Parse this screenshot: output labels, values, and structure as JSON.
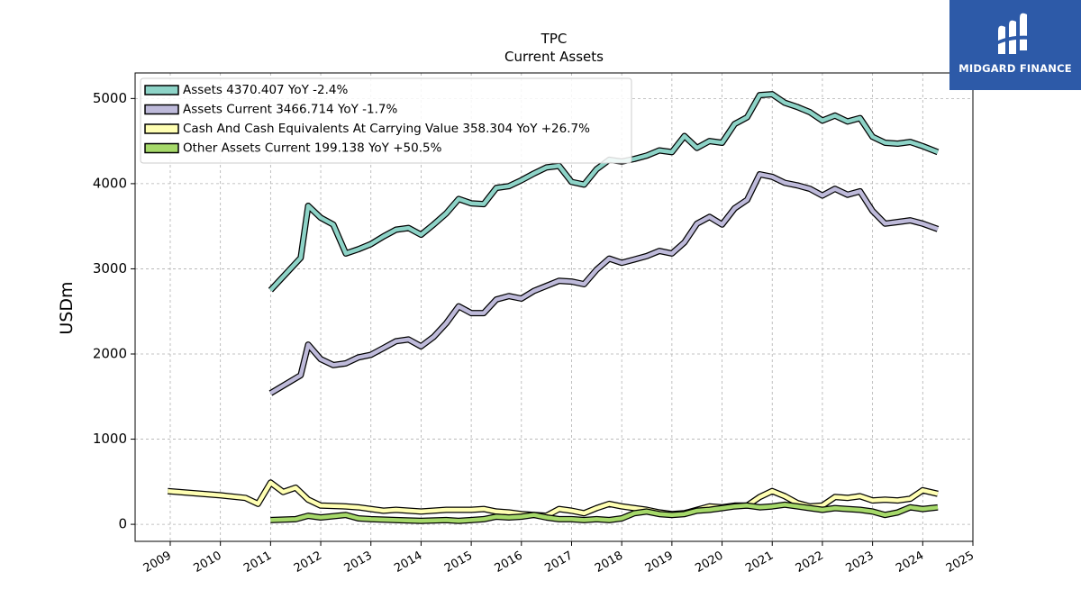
{
  "chart_data": {
    "type": "line",
    "title": "TPC",
    "subtitle": "Current  Assets",
    "ylabel": "USDm",
    "xlim": [
      2008.3,
      2025.0
    ],
    "ylim": [
      -200,
      5300
    ],
    "yticks": [
      0,
      1000,
      2000,
      3000,
      4000,
      5000
    ],
    "xticks": [
      "2009",
      "2010",
      "2011",
      "2012",
      "2013",
      "2014",
      "2015",
      "2016",
      "2017",
      "2018",
      "2019",
      "2020",
      "2021",
      "2022",
      "2023",
      "2024",
      "2025"
    ],
    "grid": true,
    "legend_position": "top-left",
    "series": [
      {
        "name": "Assets  4370.407 YoY -2.4%",
        "color": "#8dd3c7",
        "x": [
          2011.0,
          2011.6,
          2011.75,
          2012.0,
          2012.25,
          2012.5,
          2012.75,
          2013.0,
          2013.25,
          2013.5,
          2013.75,
          2014.0,
          2014.25,
          2014.5,
          2014.75,
          2015.0,
          2015.25,
          2015.5,
          2015.75,
          2016.0,
          2016.25,
          2016.5,
          2016.75,
          2017.0,
          2017.25,
          2017.5,
          2017.75,
          2018.0,
          2018.25,
          2018.5,
          2018.75,
          2019.0,
          2019.25,
          2019.5,
          2019.75,
          2020.0,
          2020.25,
          2020.5,
          2020.75,
          2021.0,
          2021.25,
          2021.5,
          2021.75,
          2022.0,
          2022.25,
          2022.5,
          2022.75,
          2023.0,
          2023.25,
          2023.5,
          2023.75,
          2024.0,
          2024.3
        ],
        "y": [
          2750,
          3130,
          3740,
          3600,
          3520,
          3180,
          3230,
          3290,
          3380,
          3460,
          3480,
          3400,
          3520,
          3650,
          3820,
          3770,
          3760,
          3950,
          3970,
          4040,
          4120,
          4190,
          4210,
          4020,
          3990,
          4170,
          4280,
          4260,
          4290,
          4330,
          4390,
          4370,
          4560,
          4420,
          4500,
          4480,
          4700,
          4780,
          5040,
          5050,
          4950,
          4900,
          4840,
          4740,
          4800,
          4730,
          4770,
          4550,
          4480,
          4470,
          4490,
          4440,
          4370
        ]
      },
      {
        "name": "Assets Current  3466.714 YoY -1.7%",
        "color": "#bebada",
        "x": [
          2011.0,
          2011.6,
          2011.75,
          2012.0,
          2012.25,
          2012.5,
          2012.75,
          2013.0,
          2013.25,
          2013.5,
          2013.75,
          2014.0,
          2014.25,
          2014.5,
          2014.75,
          2015.0,
          2015.25,
          2015.5,
          2015.75,
          2016.0,
          2016.25,
          2016.5,
          2016.75,
          2017.0,
          2017.25,
          2017.5,
          2017.75,
          2018.0,
          2018.25,
          2018.5,
          2018.75,
          2019.0,
          2019.25,
          2019.5,
          2019.75,
          2020.0,
          2020.25,
          2020.5,
          2020.75,
          2021.0,
          2021.25,
          2021.5,
          2021.75,
          2022.0,
          2022.25,
          2022.5,
          2022.75,
          2023.0,
          2023.25,
          2023.5,
          2023.75,
          2024.0,
          2024.3
        ],
        "y": [
          1540,
          1750,
          2110,
          1940,
          1870,
          1890,
          1960,
          1990,
          2070,
          2150,
          2170,
          2090,
          2200,
          2360,
          2560,
          2480,
          2480,
          2640,
          2680,
          2650,
          2740,
          2800,
          2860,
          2850,
          2820,
          2990,
          3120,
          3070,
          3110,
          3150,
          3210,
          3180,
          3310,
          3530,
          3610,
          3520,
          3710,
          3810,
          4110,
          4080,
          4010,
          3980,
          3940,
          3860,
          3940,
          3870,
          3910,
          3680,
          3530,
          3550,
          3570,
          3530,
          3467
        ]
      },
      {
        "name": "Cash And Cash Equivalents At Carrying Value  358.304 YoY +26.7%",
        "color": "#ffffb3",
        "x": [
          2008.95,
          2010.0,
          2010.5,
          2010.75,
          2011.0,
          2011.25,
          2011.5,
          2011.75,
          2012.0,
          2012.5,
          2012.75,
          2013.0,
          2013.25,
          2013.5,
          2014.0,
          2014.5,
          2015.0,
          2015.25,
          2015.5,
          2015.75,
          2016.0,
          2016.5,
          2016.75,
          2017.0,
          2017.25,
          2017.5,
          2017.75,
          2018.0,
          2018.5,
          2018.75,
          2019.0,
          2019.25,
          2019.5,
          2019.75,
          2020.0,
          2020.25,
          2020.5,
          2020.75,
          2021.0,
          2021.25,
          2021.5,
          2021.75,
          2022.0,
          2022.25,
          2022.5,
          2022.75,
          2023.0,
          2023.25,
          2023.5,
          2023.75,
          2024.0,
          2024.3
        ],
        "y": [
          390,
          340,
          310,
          240,
          490,
          380,
          430,
          290,
          220,
          210,
          200,
          180,
          160,
          170,
          150,
          170,
          170,
          180,
          150,
          140,
          120,
          100,
          180,
          160,
          130,
          190,
          240,
          210,
          170,
          140,
          120,
          130,
          170,
          210,
          200,
          220,
          220,
          320,
          390,
          330,
          250,
          210,
          220,
          320,
          310,
          330,
          280,
          290,
          280,
          300,
          400,
          358
        ]
      },
      {
        "name": "Other Assets Current  199.138 YoY +50.5%",
        "color": "#a6d96a",
        "x": [
          2011.0,
          2011.5,
          2011.75,
          2012.0,
          2012.5,
          2012.75,
          2013.0,
          2013.5,
          2014.0,
          2014.5,
          2014.75,
          2015.0,
          2015.25,
          2015.5,
          2015.75,
          2016.0,
          2016.25,
          2016.5,
          2016.75,
          2017.0,
          2017.25,
          2017.5,
          2017.75,
          2018.0,
          2018.25,
          2018.5,
          2018.75,
          2019.0,
          2019.25,
          2019.5,
          2019.75,
          2020.0,
          2020.25,
          2020.5,
          2020.75,
          2021.0,
          2021.25,
          2021.5,
          2021.75,
          2022.0,
          2022.25,
          2022.5,
          2022.75,
          2023.0,
          2023.25,
          2023.5,
          2023.75,
          2024.0,
          2024.3
        ],
        "y": [
          50,
          60,
          100,
          80,
          110,
          70,
          60,
          50,
          40,
          50,
          40,
          50,
          60,
          90,
          80,
          90,
          110,
          80,
          60,
          60,
          50,
          60,
          50,
          70,
          130,
          150,
          120,
          110,
          120,
          160,
          170,
          190,
          210,
          220,
          200,
          210,
          230,
          210,
          190,
          170,
          190,
          180,
          170,
          150,
          110,
          140,
          200,
          180,
          199
        ]
      }
    ]
  },
  "logo": {
    "text": "MIDGARD FINANCE"
  }
}
